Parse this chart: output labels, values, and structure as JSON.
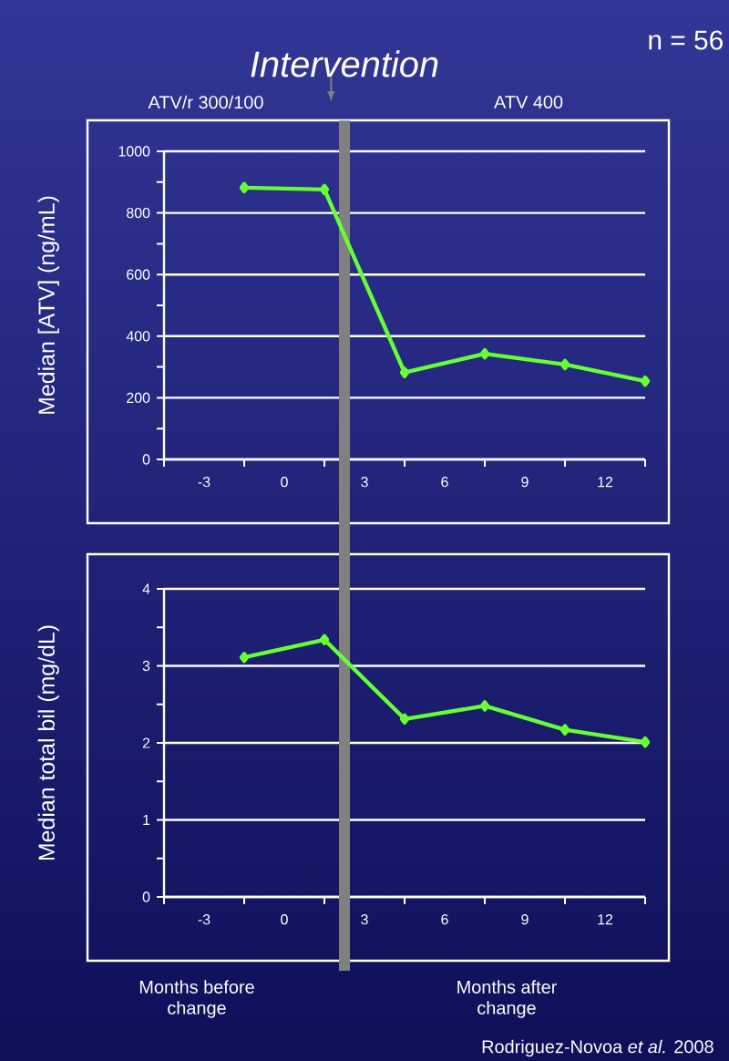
{
  "chart_data": [
    {
      "type": "line",
      "ylabel": "Median [ATV] (ng/mL)",
      "color": "#66ff33",
      "marker": "diamond",
      "grid": "y",
      "x": [
        -1.5,
        1.5,
        4.5,
        7.5,
        10.5,
        13.5
      ],
      "values": [
        882,
        876,
        282,
        343,
        308,
        254
      ],
      "xlim": [
        -4.5,
        13.5
      ],
      "xticks": [
        {
          "value": -4.5,
          "label": null
        },
        -3,
        {
          "value": -1.5,
          "label": null
        },
        0,
        {
          "value": 1.5,
          "label": null
        },
        3,
        {
          "value": 4.5,
          "label": null
        },
        6,
        {
          "value": 7.5,
          "label": null
        },
        9,
        {
          "value": 10.5,
          "label": null
        },
        12,
        {
          "value": 13.5,
          "label": null
        }
      ],
      "ylim": [
        0,
        1000
      ],
      "yticks": [
        0,
        {
          "value": 100,
          "label": null
        },
        200,
        {
          "value": 300,
          "label": null
        },
        400,
        {
          "value": 500,
          "label": null
        },
        600,
        {
          "value": 700,
          "label": null
        },
        800,
        {
          "value": 900,
          "label": null
        },
        1000
      ],
      "ref_lines": [
        {
          "axis": "x",
          "value": 2.25,
          "label": "Intervention",
          "color": "#808080"
        }
      ],
      "annotations": [
        "n = 56",
        "ATV/r 300/100",
        "ATV 400"
      ]
    },
    {
      "type": "line",
      "ylabel": "Median total bil (mg/dL)",
      "color": "#66ff33",
      "marker": "diamond",
      "grid": "y",
      "x": [
        -1.5,
        1.5,
        4.5,
        7.5,
        10.5,
        13.5
      ],
      "values": [
        3.11,
        3.34,
        2.31,
        2.48,
        2.17,
        2.01
      ],
      "xlim": [
        -4.5,
        13.5
      ],
      "xticks": [
        {
          "value": -4.5,
          "label": null
        },
        -3,
        {
          "value": -1.5,
          "label": null
        },
        0,
        {
          "value": 1.5,
          "label": null
        },
        3,
        {
          "value": 4.5,
          "label": null
        },
        6,
        {
          "value": 7.5,
          "label": null
        },
        9,
        {
          "value": 10.5,
          "label": null
        },
        12,
        {
          "value": 13.5,
          "label": null
        }
      ],
      "ylim": [
        0,
        4
      ],
      "yticks": [
        0,
        {
          "value": 0.5,
          "label": null
        },
        1,
        {
          "value": 1.5,
          "label": null
        },
        2,
        {
          "value": 2.5,
          "label": null
        },
        3,
        {
          "value": 3.5,
          "label": null
        },
        4
      ],
      "ref_lines": [
        {
          "axis": "x",
          "value": 2.25,
          "color": "#808080"
        }
      ],
      "annotations": [
        "Months before change",
        "Months after change",
        "Rodriguez-Novoa *et al.* 2008"
      ]
    }
  ]
}
